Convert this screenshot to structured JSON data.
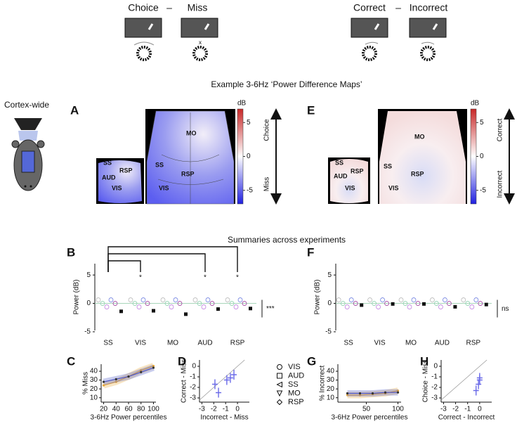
{
  "top": {
    "left": [
      "Choice",
      "–",
      "Miss"
    ],
    "right": [
      "Correct",
      "–",
      "Incorrect"
    ]
  },
  "maps_title": "Example 3-6Hz ‘Power Difference Maps’",
  "side_label": "Cortex-wide",
  "panel_letters": [
    "A",
    "E",
    "B",
    "F",
    "C",
    "D",
    "G",
    "H"
  ],
  "map_a": {
    "small_labels": [
      "SS",
      "AUD",
      "RSP",
      "VIS"
    ],
    "large_labels": [
      "MO",
      "SS",
      "RSP",
      "VIS"
    ],
    "colorbar": {
      "label": "dB",
      "ticks": [
        5,
        0,
        -5
      ],
      "lim": [
        -7,
        7
      ]
    },
    "arrow_top": "Choice",
    "arrow_bottom": "Miss"
  },
  "map_e": {
    "small_labels": [
      "SS",
      "AUD",
      "RSP",
      "VIS"
    ],
    "large_labels": [
      "MO",
      "SS",
      "RSP",
      "VIS"
    ],
    "colorbar": {
      "label": "dB",
      "ticks": [
        5,
        0,
        -5
      ],
      "lim": [
        -7,
        7
      ]
    },
    "arrow_top": "Correct",
    "arrow_bottom": "Incorrect"
  },
  "summary_title": "Summaries across experiments",
  "legend": {
    "entries": [
      {
        "label": "VIS",
        "marker": "circle"
      },
      {
        "label": "AUD",
        "marker": "square"
      },
      {
        "label": "SS",
        "marker": "triangle-left"
      },
      {
        "label": "MO",
        "marker": "triangle-down"
      },
      {
        "label": "RSP",
        "marker": "diamond"
      }
    ]
  },
  "chart_data": [
    {
      "type": "dot",
      "ylabel": "Power (dB)",
      "categories": [
        "SS",
        "VIS",
        "MO",
        "AUD",
        "RSP"
      ],
      "values": [
        -1.4,
        -1.3,
        -1.9,
        -1.0,
        -0.9
      ],
      "color": "#111111",
      "ylim": [
        -6,
        7
      ],
      "yticks": [
        5,
        0,
        -5
      ],
      "brackets": [
        {
          "to": "VIS",
          "label": "*"
        },
        {
          "to": "AUD",
          "label": "*"
        },
        {
          "to": "RSP",
          "label": "*"
        }
      ],
      "stat_label": "***"
    },
    {
      "type": "dot",
      "ylabel": "Power (dB)",
      "categories": [
        "SS",
        "VIS",
        "MO",
        "AUD",
        "RSP"
      ],
      "values": [
        -0.3,
        -0.1,
        -0.1,
        -0.6,
        -0.2
      ],
      "color": "#111111",
      "ylim": [
        -6,
        7
      ],
      "yticks": [
        5,
        0,
        -5
      ],
      "brackets": [],
      "stat_label": "ns"
    },
    {
      "type": "line",
      "xlabel": "3-6Hz Power percentiles",
      "ylabel": "% Miss",
      "x": [
        20,
        40,
        60,
        80,
        100
      ],
      "series": [
        {
          "color": "#e8a838",
          "values": [
            24,
            28,
            34,
            41,
            46
          ]
        },
        {
          "color": "#4a55c8",
          "values": [
            28,
            31,
            34,
            39,
            44
          ]
        }
      ],
      "xlim": [
        16,
        104
      ],
      "ylim": [
        5,
        48
      ],
      "xticks": [
        20,
        40,
        60,
        80,
        100
      ],
      "yticks": [
        40,
        30,
        20,
        10
      ]
    },
    {
      "type": "scatter",
      "xlabel": "Incorrect - Miss",
      "ylabel": "Correct - Miss",
      "x": [
        -1.9,
        -1.6,
        -0.9,
        -0.6,
        -0.3
      ],
      "values": [
        -1.7,
        -2.5,
        -1.3,
        -1.1,
        -0.8
      ],
      "color": "#6a6ae8",
      "diagonal": true,
      "xlim": [
        -3.2,
        1
      ],
      "ylim": [
        -3.4,
        0.6
      ],
      "xticks": [
        -3,
        -2,
        -1,
        0
      ],
      "yticks": [
        0,
        -1,
        -2,
        -3
      ]
    },
    {
      "type": "line",
      "xlabel": "3-6Hz Power percentiles",
      "ylabel": "% Incorrect",
      "x": [
        20,
        40,
        60,
        80,
        100
      ],
      "series": [
        {
          "color": "#e8a838",
          "values": [
            13,
            13,
            14,
            15,
            18
          ]
        },
        {
          "color": "#4a55c8",
          "values": [
            15,
            15,
            15,
            16,
            16
          ]
        }
      ],
      "xlim": [
        5,
        105
      ],
      "ylim": [
        5,
        48
      ],
      "xticks": [
        50,
        100
      ],
      "yticks": [
        40,
        30,
        20,
        10
      ]
    },
    {
      "type": "scatter",
      "xlabel": "Correct - Incorrect",
      "ylabel": "Choice - Miss",
      "x": [
        0.0,
        -0.1,
        -0.3,
        0.0
      ],
      "values": [
        -1.3,
        -1.7,
        -2.3,
        -1.1
      ],
      "color": "#6a6ae8",
      "diagonal": true,
      "xlim": [
        -3.2,
        1
      ],
      "ylim": [
        -3.4,
        0.6
      ],
      "xticks": [
        -3,
        -2,
        -1,
        0
      ],
      "yticks": [
        0,
        -1,
        -2,
        -3
      ]
    }
  ]
}
